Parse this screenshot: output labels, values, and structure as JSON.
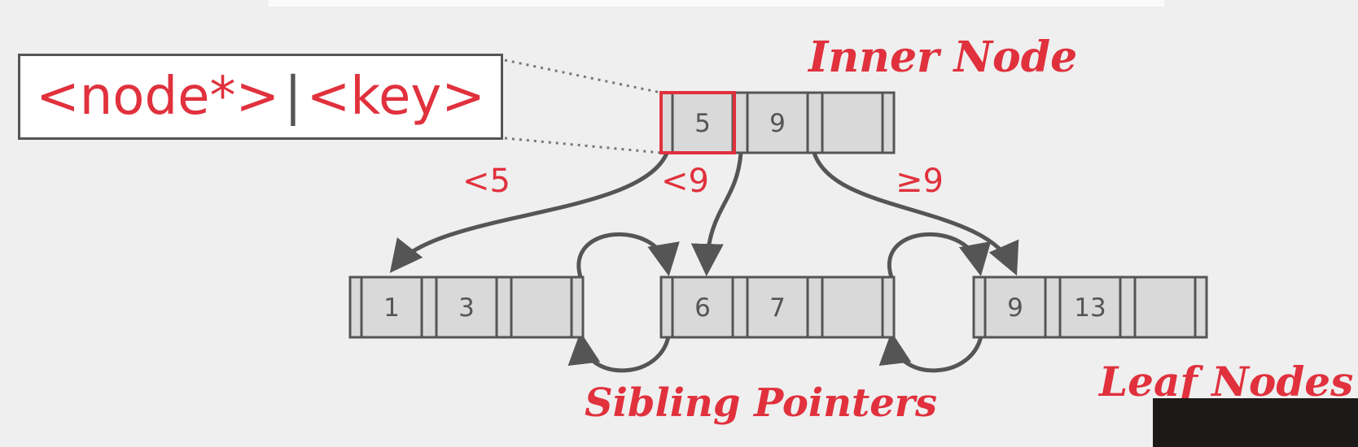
{
  "legend": {
    "node_ptr": "<node*>",
    "separator": "|",
    "key": "<key>"
  },
  "labels": {
    "inner_node": "Inner Node",
    "leaf_nodes": "Leaf Nodes",
    "sibling_pointers": "Sibling Pointers"
  },
  "edges": {
    "lt5": "<5",
    "lt9": "<9",
    "ge9": "≥9"
  },
  "inner_node": {
    "keys": [
      "5",
      "9",
      ""
    ]
  },
  "leaf_nodes": [
    {
      "keys": [
        "1",
        "3",
        ""
      ]
    },
    {
      "keys": [
        "6",
        "7",
        ""
      ]
    },
    {
      "keys": [
        "9",
        "13",
        ""
      ]
    }
  ],
  "colors": {
    "accent": "#e0313d",
    "stroke": "#555555",
    "cell_fill": "#d9d9d9",
    "background": "#efefef"
  }
}
